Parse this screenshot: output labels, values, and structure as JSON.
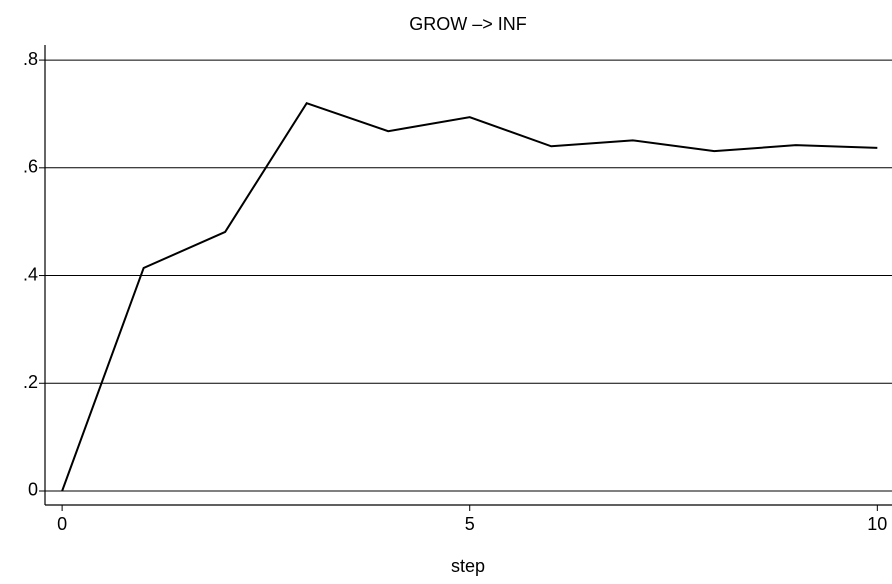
{
  "chart_data": {
    "type": "line",
    "title": "GROW –> INF",
    "x_label": "step",
    "x": [
      0,
      1,
      2,
      3,
      4,
      5,
      6,
      7,
      8,
      9,
      10
    ],
    "series": [
      {
        "color": "#000000",
        "values": [
          0,
          0.414,
          0.481,
          0.72,
          0.668,
          0.694,
          0.64,
          0.651,
          0.631,
          0.642,
          0.637
        ]
      }
    ],
    "xlim": [
      -0.21,
      10.18
    ],
    "xticks": [
      0,
      5,
      10
    ],
    "ylim": [
      -0.026,
      0.828
    ],
    "yticks": [
      0,
      {
        "value": 0.2,
        "label": ".2"
      },
      {
        "value": 0.4,
        "label": ".4"
      },
      {
        "value": 0.6,
        "label": ".6"
      },
      {
        "value": 0.8,
        "label": ".8"
      }
    ],
    "grid": true
  }
}
